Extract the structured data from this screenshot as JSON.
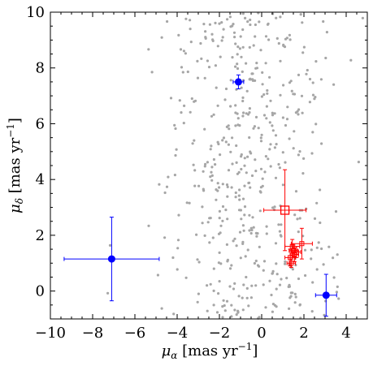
{
  "chart_data": {
    "type": "scatter",
    "title": "",
    "xlabel": "μ_α [mas yr⁻¹]",
    "ylabel": "μ_δ [mas yr⁻¹]",
    "xlim": [
      -10,
      5
    ],
    "ylim": [
      -1,
      10
    ],
    "x_ticks": [
      -10,
      -8,
      -6,
      -4,
      -2,
      0,
      2,
      4
    ],
    "y_ticks": [
      0,
      2,
      4,
      6,
      8,
      10
    ],
    "x_tick_labels": [
      "−10",
      "−8",
      "−6",
      "−4",
      "−2",
      "0",
      "2",
      "4"
    ],
    "y_tick_labels": [
      "0",
      "2",
      "4",
      "6",
      "8",
      "10"
    ],
    "grid": false,
    "background_points": {
      "color": "#a6a6a6",
      "count": 520,
      "distribution": "concentrated near x≈-0.5, spread across full y range"
    },
    "series": [
      {
        "marker": "circle",
        "color": "#0000ff",
        "points": [
          {
            "x": -1.1,
            "y": 7.5,
            "xerr": 0.25,
            "yerr": 0.25
          },
          {
            "x": -7.1,
            "y": 1.15,
            "xerr": 2.25,
            "yerr": 1.5
          },
          {
            "x": 3.05,
            "y": -0.15,
            "xerr": 0.5,
            "yerr": 0.75
          }
        ]
      },
      {
        "marker": "square-open",
        "color": "#ff0000",
        "points": [
          {
            "x": 1.1,
            "y": 2.9,
            "xerr": 1.0,
            "yerr": 1.45
          }
        ]
      },
      {
        "marker": "small-square",
        "color": "#ff0000",
        "points": [
          {
            "x": 1.45,
            "y": 1.6,
            "xerr": 0.35,
            "yerr": 0.25
          },
          {
            "x": 1.9,
            "y": 1.7,
            "xerr": 0.5,
            "yerr": 0.55
          },
          {
            "x": 1.5,
            "y": 1.45,
            "xerr": 0.2,
            "yerr": 0.2
          },
          {
            "x": 1.35,
            "y": 1.2,
            "xerr": 0.25,
            "yerr": 0.3
          },
          {
            "x": 1.55,
            "y": 1.3,
            "xerr": 0.2,
            "yerr": 0.25
          },
          {
            "x": 1.4,
            "y": 1.0,
            "xerr": 0.2,
            "yerr": 0.15
          },
          {
            "x": 1.65,
            "y": 1.4,
            "xerr": 0.2,
            "yerr": 0.2
          }
        ]
      }
    ]
  }
}
